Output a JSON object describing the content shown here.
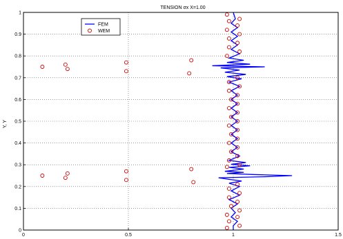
{
  "chart_data": {
    "type": "line",
    "title": "TENSION σx X=1.00",
    "xlabel": "",
    "ylabel": "Y, Y",
    "xlim": [
      0,
      1.5
    ],
    "ylim": [
      0,
      1
    ],
    "x_ticks": [
      "0",
      "0.5",
      "1",
      "1.5"
    ],
    "y_ticks": [
      "0",
      "0.1",
      "0.2",
      "0.3",
      "0.4",
      "0.5",
      "0.6",
      "0.7",
      "0.8",
      "0.9",
      "1"
    ],
    "grid": "dotted",
    "legend_position": "top-left",
    "series": [
      {
        "name": "FEM",
        "style": "line",
        "color": "#0000ff",
        "points": [
          [
            1.0,
            0.0
          ],
          [
            1.0,
            0.02
          ],
          [
            1.02,
            0.04
          ],
          [
            0.99,
            0.06
          ],
          [
            1.01,
            0.08
          ],
          [
            0.99,
            0.1
          ],
          [
            1.02,
            0.12
          ],
          [
            0.98,
            0.14
          ],
          [
            1.03,
            0.16
          ],
          [
            0.99,
            0.18
          ],
          [
            1.03,
            0.2
          ],
          [
            0.98,
            0.215
          ],
          [
            1.04,
            0.225
          ],
          [
            0.98,
            0.233
          ],
          [
            0.93,
            0.24
          ],
          [
            1.15,
            0.245
          ],
          [
            1.28,
            0.25
          ],
          [
            1.1,
            0.255
          ],
          [
            0.97,
            0.26
          ],
          [
            1.05,
            0.265
          ],
          [
            0.96,
            0.27
          ],
          [
            1.05,
            0.28
          ],
          [
            0.98,
            0.288
          ],
          [
            1.08,
            0.295
          ],
          [
            0.99,
            0.302
          ],
          [
            1.06,
            0.31
          ],
          [
            0.98,
            0.32
          ],
          [
            1.03,
            0.34
          ],
          [
            0.99,
            0.36
          ],
          [
            1.02,
            0.38
          ],
          [
            0.99,
            0.4
          ],
          [
            1.02,
            0.42
          ],
          [
            0.99,
            0.44
          ],
          [
            1.02,
            0.46
          ],
          [
            0.99,
            0.48
          ],
          [
            1.02,
            0.5
          ],
          [
            0.99,
            0.52
          ],
          [
            1.02,
            0.54
          ],
          [
            0.99,
            0.56
          ],
          [
            1.02,
            0.58
          ],
          [
            0.99,
            0.6
          ],
          [
            1.02,
            0.62
          ],
          [
            0.99,
            0.64
          ],
          [
            1.03,
            0.66
          ],
          [
            0.98,
            0.68
          ],
          [
            1.04,
            0.695
          ],
          [
            0.97,
            0.705
          ],
          [
            1.06,
            0.715
          ],
          [
            0.96,
            0.725
          ],
          [
            1.03,
            0.735
          ],
          [
            0.94,
            0.745
          ],
          [
            1.15,
            0.75
          ],
          [
            0.9,
            0.755
          ],
          [
            1.08,
            0.762
          ],
          [
            0.97,
            0.77
          ],
          [
            1.05,
            0.78
          ],
          [
            0.98,
            0.79
          ],
          [
            1.03,
            0.81
          ],
          [
            0.99,
            0.83
          ],
          [
            1.02,
            0.85
          ],
          [
            0.99,
            0.87
          ],
          [
            1.02,
            0.89
          ],
          [
            0.99,
            0.91
          ],
          [
            1.02,
            0.93
          ],
          [
            0.99,
            0.95
          ],
          [
            1.01,
            0.97
          ],
          [
            1.0,
            1.0
          ]
        ]
      },
      {
        "name": "WEM",
        "style": "marker",
        "color": "#cc0000",
        "points": [
          [
            0.09,
            0.25
          ],
          [
            0.2,
            0.24
          ],
          [
            0.21,
            0.26
          ],
          [
            0.49,
            0.27
          ],
          [
            0.49,
            0.23
          ],
          [
            0.8,
            0.28
          ],
          [
            0.81,
            0.22
          ],
          [
            0.09,
            0.75
          ],
          [
            0.2,
            0.76
          ],
          [
            0.21,
            0.74
          ],
          [
            0.49,
            0.77
          ],
          [
            0.49,
            0.73
          ],
          [
            0.8,
            0.78
          ],
          [
            0.79,
            0.72
          ],
          [
            0.97,
            0.01
          ],
          [
            1.03,
            0.02
          ],
          [
            0.98,
            0.04
          ],
          [
            1.02,
            0.06
          ],
          [
            0.97,
            0.07
          ],
          [
            1.03,
            0.09
          ],
          [
            0.99,
            0.11
          ],
          [
            1.02,
            0.13
          ],
          [
            0.98,
            0.15
          ],
          [
            1.03,
            0.17
          ],
          [
            0.98,
            0.19
          ],
          [
            1.02,
            0.21
          ],
          [
            0.97,
            0.29
          ],
          [
            1.03,
            0.3
          ],
          [
            0.98,
            0.32
          ],
          [
            1.02,
            0.34
          ],
          [
            0.99,
            0.36
          ],
          [
            1.02,
            0.38
          ],
          [
            0.98,
            0.4
          ],
          [
            1.02,
            0.42
          ],
          [
            0.99,
            0.44
          ],
          [
            1.02,
            0.46
          ],
          [
            0.98,
            0.48
          ],
          [
            1.02,
            0.5
          ],
          [
            0.99,
            0.52
          ],
          [
            1.02,
            0.54
          ],
          [
            0.98,
            0.56
          ],
          [
            1.02,
            0.58
          ],
          [
            0.99,
            0.6
          ],
          [
            1.02,
            0.62
          ],
          [
            0.98,
            0.64
          ],
          [
            1.03,
            0.66
          ],
          [
            0.98,
            0.68
          ],
          [
            1.02,
            0.7
          ],
          [
            0.97,
            0.8
          ],
          [
            1.03,
            0.82
          ],
          [
            0.98,
            0.84
          ],
          [
            1.02,
            0.86
          ],
          [
            0.98,
            0.88
          ],
          [
            1.03,
            0.9
          ],
          [
            0.97,
            0.92
          ],
          [
            1.02,
            0.94
          ],
          [
            0.98,
            0.96
          ],
          [
            1.03,
            0.97
          ],
          [
            0.97,
            0.99
          ]
        ]
      }
    ]
  }
}
